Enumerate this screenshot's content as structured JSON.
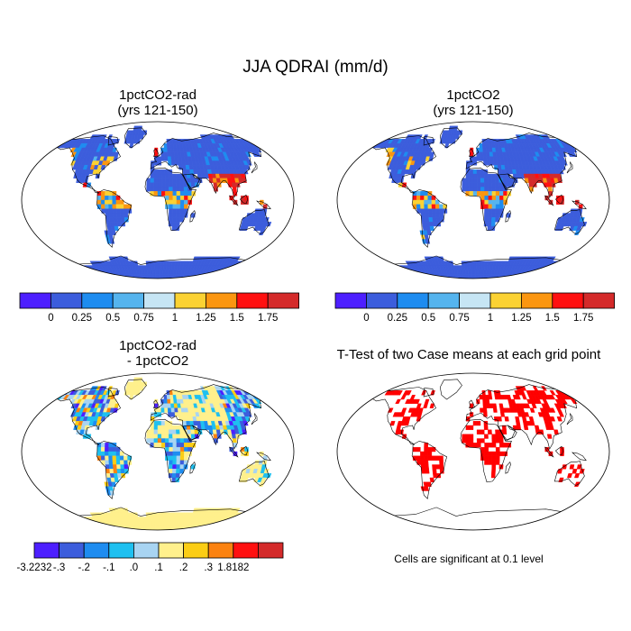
{
  "figure": {
    "title": "JJA QDRAI (mm/d)"
  },
  "panels": [
    {
      "id": "p1",
      "title_line1": "1pctCO2-rad",
      "title_line2": "(yrs 121-150)"
    },
    {
      "id": "p2",
      "title_line1": "1pctCO2",
      "title_line2": "(yrs 121-150)"
    },
    {
      "id": "p3",
      "title_line1": "1pctCO2-rad",
      "title_line2": "- 1pctCO2"
    },
    {
      "id": "p4",
      "title_line1": "T-Test of two Case means at each grid point",
      "title_line2": ""
    }
  ],
  "colorbars": {
    "abs": {
      "colors": [
        "#4d1fff",
        "#3c5ddc",
        "#1e8cf0",
        "#55b4ee",
        "#c6e5f4",
        "#fbd233",
        "#fb9610",
        "#ff1010",
        "#d42a2a"
      ],
      "labels": [
        "0",
        "0.25",
        "0.5",
        "0.75",
        "1",
        "1.25",
        "1.5",
        "1.75"
      ]
    },
    "diff": {
      "colors": [
        "#4d1fff",
        "#3c5ddc",
        "#1e8cf0",
        "#1ec0f0",
        "#a8d4f2",
        "#fff08c",
        "#fbcd14",
        "#fb8210",
        "#ff1010",
        "#d42a2a"
      ],
      "labels": [
        "-3.2232",
        "-.3",
        "-.2",
        "-.1",
        ".0",
        ".1",
        ".2",
        ".3",
        "1.8182"
      ]
    }
  },
  "ttest": {
    "note": "Cells are significant at 0.1 level",
    "sig_color": "#ff0000"
  },
  "map_colors": {
    "ocean": "#ffffff",
    "land_base": "#3c5ddc",
    "coast": "#000000"
  }
}
